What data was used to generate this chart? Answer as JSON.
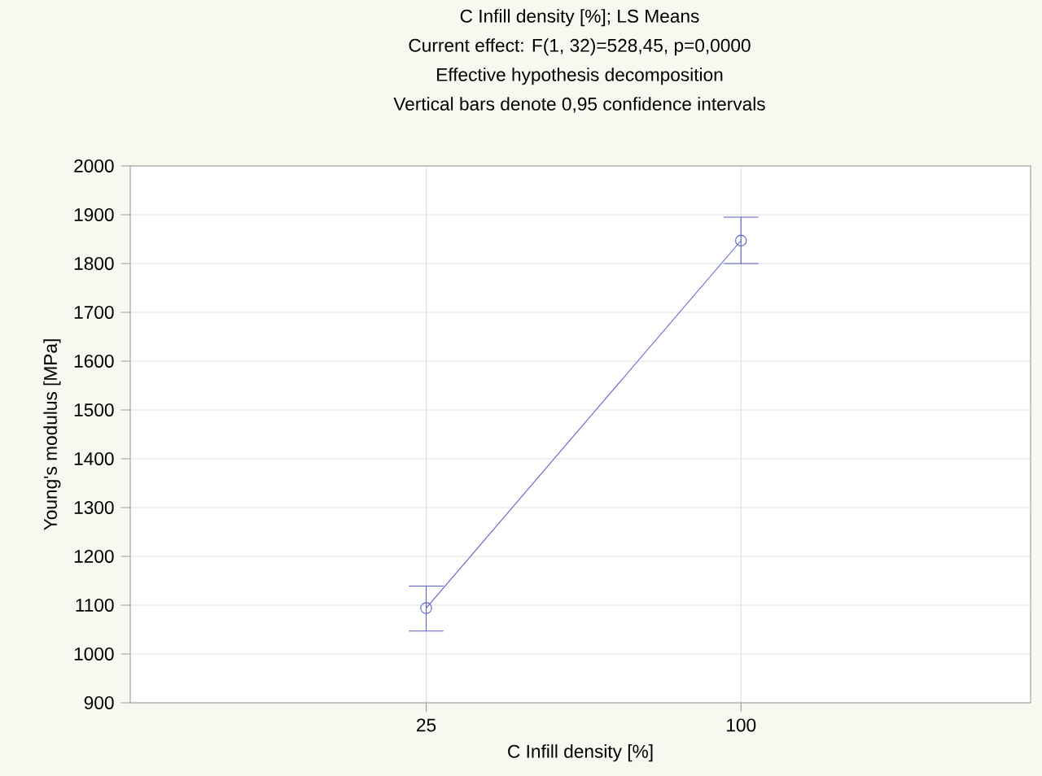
{
  "chart_data": {
    "type": "line",
    "title": "C Infill density [%]; LS Means",
    "subtitle": "Current effect: F(1, 32)=528,45, p=0,0000",
    "annotations": [
      "Effective hypothesis decomposition",
      "Vertical bars denote 0,95 confidence intervals"
    ],
    "xlabel": "C Infill density [%]",
    "ylabel": "Young's modulus [MPa]",
    "categories": [
      "25",
      "100"
    ],
    "values": [
      1094,
      1847
    ],
    "errors": [
      [
        1047,
        1139
      ],
      [
        1800,
        1895
      ]
    ],
    "color": "#5a5fc8",
    "ylim": [
      900,
      2000
    ],
    "yticks": [
      900,
      1000,
      1100,
      1200,
      1300,
      1400,
      1500,
      1600,
      1700,
      1800,
      1900,
      2000
    ],
    "grid": true,
    "marker": "circle",
    "line_style": "solid"
  }
}
